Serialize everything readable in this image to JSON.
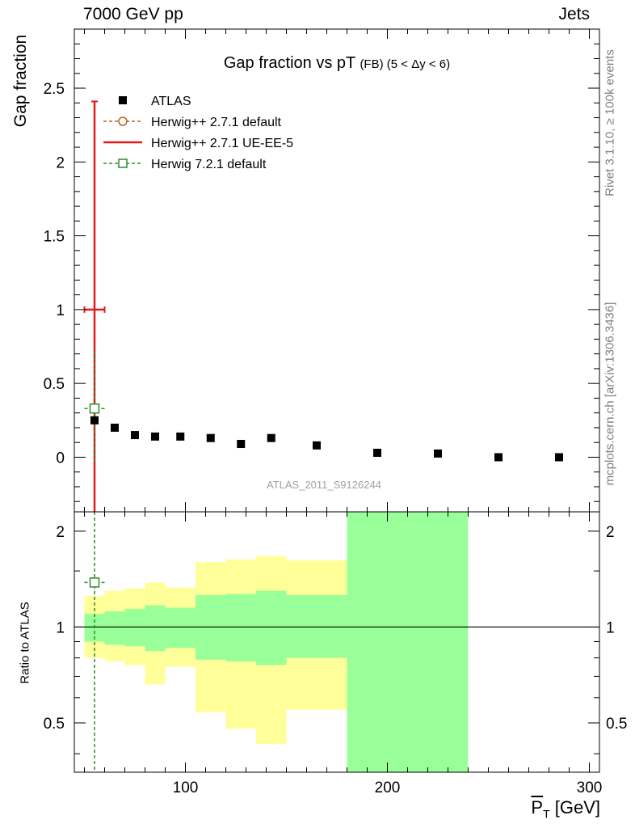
{
  "header": {
    "left": "7000 GeV pp",
    "right": "Jets"
  },
  "side": {
    "rivet": "Rivet 3.1.10, ≥ 100k events",
    "mcplots": "mcplots.cern.ch [arXiv:1306.3436]"
  },
  "chart_data": {
    "type": "scatter",
    "title": "Gap fraction vs pT",
    "title_sub": "(FB) (5 < Δy < 6)",
    "xlabel": "P_T [GeV]",
    "xlabel_main": "P",
    "xlabel_sub": "T",
    "xlabel_unit": "[GeV]",
    "ylabel": "Gap fraction",
    "ratio_ylabel": "Ratio to ATLAS",
    "watermark": "ATLAS_2011_S9126244",
    "xlim": [
      45,
      305
    ],
    "ylim": [
      -0.37,
      2.9
    ],
    "ratio_ylim": [
      0.35,
      2.3
    ],
    "xticks": [
      100,
      200,
      300
    ],
    "xtick_labels": [
      "100",
      "200",
      "300"
    ],
    "yticks": [
      0,
      0.5,
      1,
      1.5,
      2,
      2.5
    ],
    "ytick_labels": [
      "0",
      "0.5",
      "1",
      "1.5",
      "2",
      "2.5"
    ],
    "ratio_yticks": [
      0.5,
      1,
      2
    ],
    "ratio_ytick_labels": [
      "0.5",
      "1",
      "2"
    ],
    "colors": {
      "atlas": "#000000",
      "herwigpp_default": "#b8651c",
      "ue_ee5": "#e31a1c",
      "h721": "#2e8b2e",
      "band_inner": "#99ff99",
      "band_outer": "#ffff99"
    },
    "series": [
      {
        "name": "ATLAS",
        "label": "ATLAS",
        "x": [
          55,
          65,
          75,
          85,
          97.5,
          112.5,
          127.5,
          142.5,
          165,
          195,
          225,
          255,
          285
        ],
        "y": [
          0.25,
          0.2,
          0.15,
          0.14,
          0.14,
          0.13,
          0.09,
          0.13,
          0.08,
          0.03,
          0.025,
          0.0,
          0.0
        ]
      },
      {
        "name": "Herwig++ 2.7.1 default",
        "label": "Herwig++ 2.7.1 default"
      },
      {
        "name": "Herwig++ 2.7.1 UE-EE-5",
        "label": "Herwig++ 2.7.1 UE-EE-5",
        "x": [
          55
        ],
        "y": [
          1.0
        ],
        "yerr_up": [
          2.41
        ],
        "xerr": [
          5
        ]
      },
      {
        "name": "Herwig 7.2.1 default",
        "label": "Herwig 7.2.1 default",
        "x": [
          55
        ],
        "y": [
          0.33
        ],
        "yerr_up": [
          0.72
        ],
        "yerr_down": [
          -0.05
        ],
        "xerr": [
          5
        ],
        "ratio": [
          1.38
        ]
      }
    ],
    "ratio_bands": [
      {
        "x0": 50,
        "x1": 60,
        "inner": [
          0.9,
          1.1
        ],
        "outer": [
          0.8,
          1.25
        ]
      },
      {
        "x0": 60,
        "x1": 70,
        "inner": [
          0.88,
          1.12
        ],
        "outer": [
          0.78,
          1.3
        ]
      },
      {
        "x0": 70,
        "x1": 80,
        "inner": [
          0.87,
          1.14
        ],
        "outer": [
          0.76,
          1.32
        ]
      },
      {
        "x0": 80,
        "x1": 90,
        "inner": [
          0.84,
          1.17
        ],
        "outer": [
          0.66,
          1.38
        ]
      },
      {
        "x0": 90,
        "x1": 105,
        "inner": [
          0.86,
          1.15
        ],
        "outer": [
          0.75,
          1.33
        ]
      },
      {
        "x0": 105,
        "x1": 120,
        "inner": [
          0.79,
          1.26
        ],
        "outer": [
          0.54,
          1.6
        ]
      },
      {
        "x0": 120,
        "x1": 135,
        "inner": [
          0.78,
          1.27
        ],
        "outer": [
          0.48,
          1.63
        ]
      },
      {
        "x0": 135,
        "x1": 150,
        "inner": [
          0.76,
          1.3
        ],
        "outer": [
          0.43,
          1.67
        ]
      },
      {
        "x0": 150,
        "x1": 180,
        "inner": [
          0.8,
          1.26
        ],
        "outer": [
          0.55,
          1.62
        ]
      },
      {
        "x0": 180,
        "x1": 240,
        "inner": [
          0.35,
          2.3
        ],
        "outer": [
          0.35,
          2.3
        ]
      }
    ]
  }
}
